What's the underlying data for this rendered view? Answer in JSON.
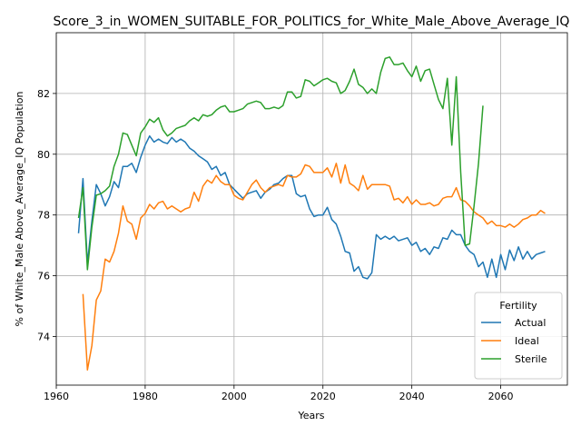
{
  "chart_data": {
    "type": "line",
    "title": "Score_3_in_WOMEN_SUITABLE_FOR_POLITICS_for_White_Male_Above_Average_IQ",
    "xlabel": "Years",
    "ylabel": "% of White_Male Above_Average_IQ Population",
    "xlim": [
      1960,
      2075
    ],
    "ylim": [
      72.4,
      84.0
    ],
    "xticks": [
      1960,
      1980,
      2000,
      2020,
      2040,
      2060
    ],
    "yticks": [
      74,
      76,
      78,
      80,
      82
    ],
    "grid": true,
    "legend": {
      "title": "Fertility",
      "placement": "lower right"
    },
    "series": [
      {
        "name": "Actual",
        "color": "#1f77b4",
        "x": [
          1965,
          1966,
          1967,
          1968,
          1969,
          1970,
          1971,
          1972,
          1973,
          1974,
          1975,
          1976,
          1977,
          1978,
          1979,
          1980,
          1981,
          1982,
          1983,
          1984,
          1985,
          1986,
          1987,
          1988,
          1989,
          1990,
          1991,
          1992,
          1993,
          1994,
          1995,
          1996,
          1997,
          1998,
          1999,
          2000,
          2001,
          2002,
          2003,
          2004,
          2005,
          2006,
          2007,
          2008,
          2009,
          2010,
          2011,
          2012,
          2013,
          2014,
          2015,
          2016,
          2017,
          2018,
          2019,
          2020,
          2021,
          2022,
          2023,
          2024,
          2025,
          2026,
          2027,
          2028,
          2029,
          2030,
          2031,
          2032,
          2033,
          2034,
          2035,
          2036,
          2037,
          2038,
          2039,
          2040,
          2041,
          2042,
          2043,
          2044,
          2045,
          2046,
          2047,
          2048,
          2049,
          2050,
          2051,
          2052,
          2053,
          2054,
          2055,
          2056,
          2057,
          2058,
          2059,
          2060,
          2061,
          2062,
          2063,
          2064,
          2065,
          2066,
          2067,
          2068,
          2069,
          2070
        ],
        "values": [
          77.4,
          79.2,
          76.4,
          77.8,
          79.0,
          78.7,
          78.3,
          78.6,
          79.1,
          78.9,
          79.6,
          79.6,
          79.7,
          79.4,
          79.9,
          80.3,
          80.6,
          80.4,
          80.5,
          80.4,
          80.35,
          80.55,
          80.4,
          80.5,
          80.4,
          80.2,
          80.1,
          79.95,
          79.85,
          79.75,
          79.5,
          79.6,
          79.3,
          79.4,
          79.0,
          78.85,
          78.7,
          78.55,
          78.7,
          78.75,
          78.8,
          78.55,
          78.75,
          78.85,
          79.0,
          79.05,
          79.2,
          79.3,
          79.3,
          78.7,
          78.6,
          78.65,
          78.2,
          77.95,
          78.0,
          78.0,
          78.25,
          77.85,
          77.7,
          77.3,
          76.8,
          76.75,
          76.15,
          76.3,
          75.95,
          75.9,
          76.1,
          77.35,
          77.2,
          77.3,
          77.2,
          77.3,
          77.15,
          77.2,
          77.25,
          77.0,
          77.1,
          76.8,
          76.9,
          76.7,
          76.95,
          76.9,
          77.25,
          77.2,
          77.5,
          77.35,
          77.35,
          77.0,
          76.8,
          76.7,
          76.3,
          76.45,
          75.95,
          76.55,
          75.95,
          76.7,
          76.2,
          76.85,
          76.5,
          76.95,
          76.55,
          76.8,
          76.55,
          76.7,
          76.75,
          76.8
        ]
      },
      {
        "name": "Ideal",
        "color": "#ff7f0e",
        "x": [
          1966,
          1967,
          1968,
          1969,
          1970,
          1971,
          1972,
          1973,
          1974,
          1975,
          1976,
          1977,
          1978,
          1979,
          1980,
          1981,
          1982,
          1983,
          1984,
          1985,
          1986,
          1987,
          1988,
          1989,
          1990,
          1991,
          1992,
          1993,
          1994,
          1995,
          1996,
          1997,
          1998,
          1999,
          2000,
          2001,
          2002,
          2003,
          2004,
          2005,
          2006,
          2007,
          2008,
          2009,
          2010,
          2011,
          2012,
          2013,
          2014,
          2015,
          2016,
          2017,
          2018,
          2019,
          2020,
          2021,
          2022,
          2023,
          2024,
          2025,
          2026,
          2027,
          2028,
          2029,
          2030,
          2031,
          2032,
          2033,
          2034,
          2035,
          2036,
          2037,
          2038,
          2039,
          2040,
          2041,
          2042,
          2043,
          2044,
          2045,
          2046,
          2047,
          2048,
          2049,
          2050,
          2051,
          2052,
          2053,
          2054,
          2055,
          2056,
          2057,
          2058,
          2059,
          2060,
          2061,
          2062,
          2063,
          2064,
          2065,
          2066,
          2067,
          2068,
          2069,
          2070
        ],
        "values": [
          75.4,
          72.9,
          73.7,
          75.2,
          75.5,
          76.55,
          76.45,
          76.8,
          77.4,
          78.3,
          77.8,
          77.7,
          77.2,
          77.9,
          78.05,
          78.35,
          78.2,
          78.4,
          78.45,
          78.2,
          78.3,
          78.2,
          78.1,
          78.2,
          78.25,
          78.75,
          78.45,
          78.95,
          79.15,
          79.05,
          79.3,
          79.1,
          79.0,
          79.0,
          78.65,
          78.55,
          78.5,
          78.75,
          79.0,
          79.15,
          78.9,
          78.75,
          78.9,
          78.95,
          79.0,
          78.95,
          79.3,
          79.25,
          79.25,
          79.35,
          79.65,
          79.6,
          79.4,
          79.4,
          79.4,
          79.55,
          79.25,
          79.7,
          79.05,
          79.65,
          79.05,
          78.95,
          78.8,
          79.3,
          78.85,
          79.0,
          79.0,
          79.0,
          79.0,
          78.95,
          78.5,
          78.55,
          78.4,
          78.6,
          78.35,
          78.5,
          78.35,
          78.35,
          78.4,
          78.3,
          78.35,
          78.55,
          78.6,
          78.6,
          78.9,
          78.5,
          78.45,
          78.3,
          78.1,
          78.0,
          77.9,
          77.7,
          77.8,
          77.65,
          77.65,
          77.6,
          77.7,
          77.6,
          77.7,
          77.85,
          77.9,
          78.0,
          78.0,
          78.15,
          78.05
        ]
      },
      {
        "name": "Sterile",
        "color": "#2ca02c",
        "x": [
          1965,
          1966,
          1967,
          1968,
          1969,
          1970,
          1971,
          1972,
          1973,
          1974,
          1975,
          1976,
          1977,
          1978,
          1979,
          1980,
          1981,
          1982,
          1983,
          1984,
          1985,
          1986,
          1987,
          1988,
          1989,
          1990,
          1991,
          1992,
          1993,
          1994,
          1995,
          1996,
          1997,
          1998,
          1999,
          2000,
          2001,
          2002,
          2003,
          2004,
          2005,
          2006,
          2007,
          2008,
          2009,
          2010,
          2011,
          2012,
          2013,
          2014,
          2015,
          2016,
          2017,
          2018,
          2019,
          2020,
          2021,
          2022,
          2023,
          2024,
          2025,
          2026,
          2027,
          2028,
          2029,
          2030,
          2031,
          2032,
          2033,
          2034,
          2035,
          2036,
          2037,
          2038,
          2039,
          2040,
          2041,
          2042,
          2043,
          2044,
          2045,
          2046,
          2047,
          2048,
          2049,
          2050,
          2051,
          2052,
          2053,
          2054,
          2055,
          2056
        ],
        "values": [
          77.9,
          78.9,
          76.2,
          77.6,
          78.65,
          78.7,
          78.8,
          78.95,
          79.6,
          80.0,
          80.7,
          80.65,
          80.3,
          79.95,
          80.7,
          80.9,
          81.15,
          81.05,
          81.2,
          80.8,
          80.6,
          80.7,
          80.85,
          80.9,
          80.95,
          81.1,
          81.2,
          81.1,
          81.3,
          81.25,
          81.3,
          81.45,
          81.55,
          81.6,
          81.4,
          81.4,
          81.45,
          81.5,
          81.65,
          81.7,
          81.75,
          81.7,
          81.5,
          81.5,
          81.55,
          81.5,
          81.6,
          82.05,
          82.05,
          81.85,
          81.9,
          82.45,
          82.4,
          82.25,
          82.35,
          82.45,
          82.5,
          82.4,
          82.35,
          82.0,
          82.1,
          82.4,
          82.8,
          82.3,
          82.2,
          82.0,
          82.15,
          82.0,
          82.7,
          83.15,
          83.2,
          82.95,
          82.95,
          83.0,
          82.75,
          82.55,
          82.9,
          82.4,
          82.75,
          82.8,
          82.3,
          81.8,
          81.5,
          82.5,
          80.3,
          82.55,
          79.4,
          77.0,
          77.05,
          78.3,
          79.7,
          81.6
        ]
      }
    ]
  }
}
